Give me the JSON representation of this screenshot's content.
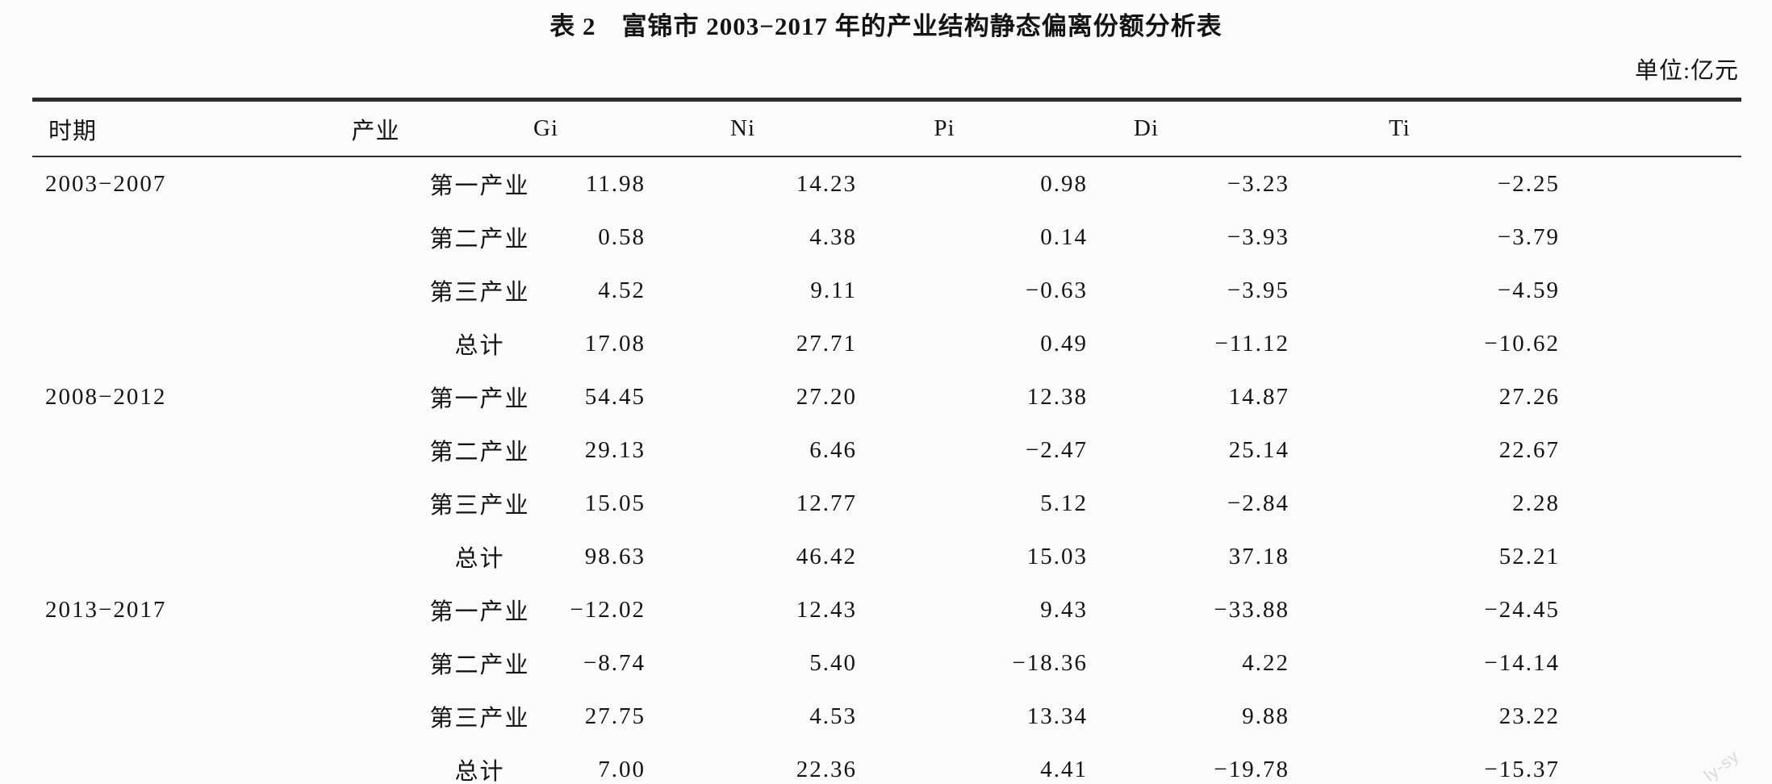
{
  "title": "表 2　富锦市 2003−2017 年的产业结构静态偏离份额分析表",
  "unit_label": "单位:亿元",
  "watermark": "ly-sy",
  "colors": {
    "background": "#fbfbfb",
    "text": "#141414",
    "rule": "#2b2b2b",
    "watermark": "#d9d9d9"
  },
  "table": {
    "columns": [
      "时期",
      "产业",
      "Gi",
      "Ni",
      "Pi",
      "Di",
      "Ti"
    ],
    "rows": [
      {
        "period": "2003−2007",
        "industry": "第一产业",
        "gi": "11.98",
        "ni": "14.23",
        "pi": "0.98",
        "di": "−3.23",
        "ti": "−2.25"
      },
      {
        "period": "",
        "industry": "第二产业",
        "gi": "0.58",
        "ni": "4.38",
        "pi": "0.14",
        "di": "−3.93",
        "ti": "−3.79"
      },
      {
        "period": "",
        "industry": "第三产业",
        "gi": "4.52",
        "ni": "9.11",
        "pi": "−0.63",
        "di": "−3.95",
        "ti": "−4.59"
      },
      {
        "period": "",
        "industry": "总计",
        "gi": "17.08",
        "ni": "27.71",
        "pi": "0.49",
        "di": "−11.12",
        "ti": "−10.62"
      },
      {
        "period": "2008−2012",
        "industry": "第一产业",
        "gi": "54.45",
        "ni": "27.20",
        "pi": "12.38",
        "di": "14.87",
        "ti": "27.26"
      },
      {
        "period": "",
        "industry": "第二产业",
        "gi": "29.13",
        "ni": "6.46",
        "pi": "−2.47",
        "di": "25.14",
        "ti": "22.67"
      },
      {
        "period": "",
        "industry": "第三产业",
        "gi": "15.05",
        "ni": "12.77",
        "pi": "5.12",
        "di": "−2.84",
        "ti": "2.28"
      },
      {
        "period": "",
        "industry": "总计",
        "gi": "98.63",
        "ni": "46.42",
        "pi": "15.03",
        "di": "37.18",
        "ti": "52.21"
      },
      {
        "period": "2013−2017",
        "industry": "第一产业",
        "gi": "−12.02",
        "ni": "12.43",
        "pi": "9.43",
        "di": "−33.88",
        "ti": "−24.45"
      },
      {
        "period": "",
        "industry": "第二产业",
        "gi": "−8.74",
        "ni": "5.40",
        "pi": "−18.36",
        "di": "4.22",
        "ti": "−14.14"
      },
      {
        "period": "",
        "industry": "第三产业",
        "gi": "27.75",
        "ni": "4.53",
        "pi": "13.34",
        "di": "9.88",
        "ti": "23.22"
      },
      {
        "period": "",
        "industry": "总计",
        "gi": "7.00",
        "ni": "22.36",
        "pi": "4.41",
        "di": "−19.78",
        "ti": "−15.37"
      }
    ]
  }
}
